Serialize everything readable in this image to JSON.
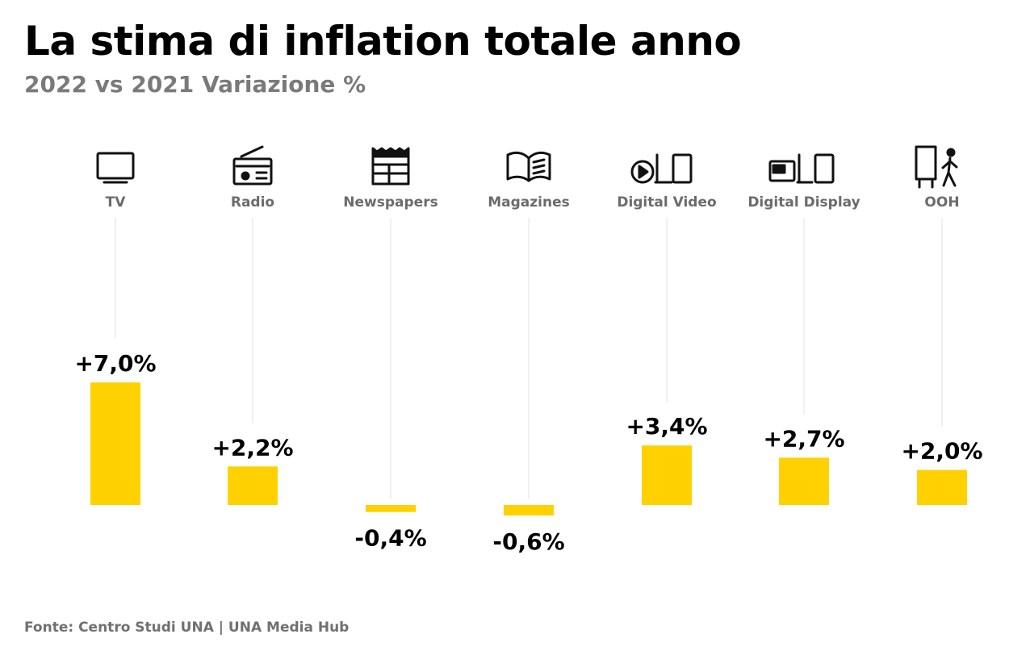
{
  "title": "La stima di inflation totale anno",
  "subtitle": "2022 vs 2021 Variazione %",
  "source": "Fonte: Centro Studi UNA | UNA Media Hub",
  "colors": {
    "bar": "#FFD100",
    "text": "#000000",
    "category_label": "#6b6b6b",
    "guide": "#e6e6e6"
  },
  "icons": [
    "tv-icon",
    "radio-icon",
    "newspaper-icon",
    "magazine-icon",
    "digital-video-icon",
    "digital-display-icon",
    "ooh-icon"
  ],
  "chart_data": {
    "type": "bar",
    "title": "La stima di inflation totale anno",
    "subtitle": "2022 vs 2021 Variazione %",
    "categories": [
      "TV",
      "Radio",
      "Newspapers",
      "Magazines",
      "Digital Video",
      "Digital Display",
      "OOH"
    ],
    "values": [
      7.0,
      2.2,
      -0.4,
      -0.6,
      3.4,
      2.7,
      2.0
    ],
    "value_labels": [
      "+7,0%",
      "+2,2%",
      "-0,4%",
      "-0,6%",
      "+3,4%",
      "+2,7%",
      "+2,0%"
    ],
    "unit": "%",
    "grid": false,
    "legend": "none"
  }
}
